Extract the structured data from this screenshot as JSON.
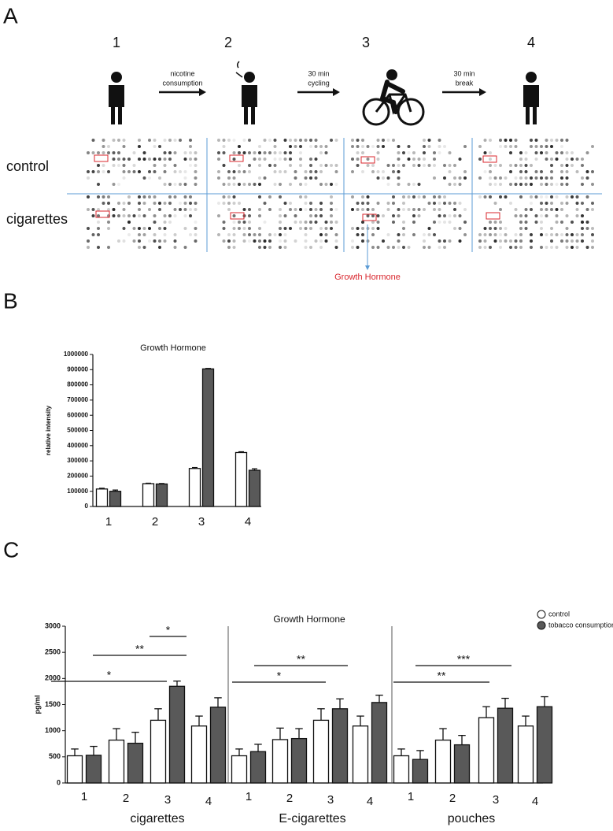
{
  "panel_labels": [
    "A",
    "B",
    "C"
  ],
  "panel_a": {
    "steps": [
      "1",
      "2",
      "3",
      "4"
    ],
    "arrows": [
      [
        "nicotine",
        "consumption"
      ],
      [
        "30 min",
        "cycling"
      ],
      [
        "30 min",
        "break"
      ]
    ],
    "rows": [
      "control",
      "cigarettes"
    ],
    "annotation": "Growth Hormone"
  },
  "chart_data": [
    {
      "type": "bar",
      "title": "Growth Hormone",
      "y_label": "relative intensity",
      "categories": [
        "1",
        "2",
        "3",
        "4"
      ],
      "series": [
        {
          "color": "#ffffff",
          "values": [
            115000,
            150000,
            250000,
            355000
          ],
          "errors": [
            5000,
            3000,
            6000,
            5000
          ]
        },
        {
          "color": "#595959",
          "values": [
            100000,
            148000,
            905000,
            238000
          ],
          "errors": [
            8000,
            3000,
            3000,
            10000
          ]
        }
      ],
      "ylim": [
        0,
        1000000
      ],
      "yticks": [
        0,
        100000,
        200000,
        300000,
        400000,
        500000,
        600000,
        700000,
        800000,
        900000,
        1000000
      ]
    },
    {
      "type": "bar",
      "title": "Growth Hormone",
      "y_label": "pg/ml",
      "categories": [
        "1",
        "2",
        "3",
        "4",
        "1",
        "2",
        "3",
        "4",
        "1",
        "2",
        "3",
        "4"
      ],
      "groups": [
        "cigarettes",
        "E-cigarettes",
        "pouches"
      ],
      "series": [
        {
          "name": "control",
          "color": "#ffffff",
          "values": [
            520,
            820,
            1200,
            1090,
            520,
            830,
            1200,
            1090,
            520,
            820,
            1250,
            1090
          ],
          "errors": [
            130,
            220,
            220,
            190,
            130,
            220,
            220,
            190,
            130,
            220,
            210,
            190
          ]
        },
        {
          "name": "tobacco consumption",
          "color": "#595959",
          "values": [
            530,
            760,
            1850,
            1450,
            600,
            850,
            1420,
            1540,
            450,
            730,
            1430,
            1460
          ],
          "errors": [
            170,
            210,
            100,
            180,
            140,
            190,
            190,
            140,
            170,
            180,
            190,
            190
          ]
        }
      ],
      "significance": [
        "*",
        "**",
        "*",
        "*",
        "**",
        "**",
        "***"
      ],
      "ylim": [
        0,
        3000
      ],
      "yticks": [
        0,
        500,
        1000,
        1500,
        2000,
        2500,
        3000
      ]
    }
  ]
}
